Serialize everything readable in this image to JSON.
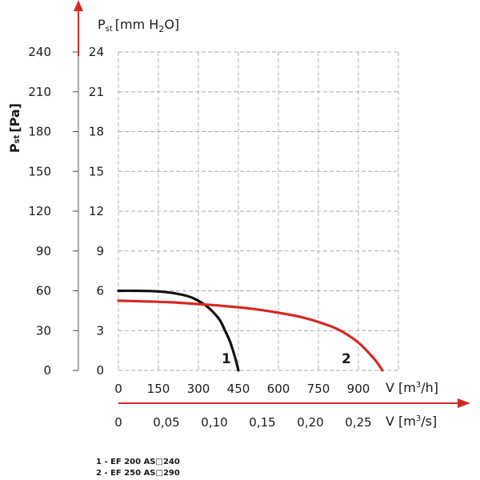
{
  "chart_data": {
    "type": "line",
    "y_axis_title": "P",
    "y_axis_title_sub": "st",
    "y_axis_unit": "[Pa]",
    "y2_axis_title": "P",
    "y2_axis_title_sub": "st",
    "y2_axis_unit_pre": "[mm H",
    "y2_axis_unit_sub": "2",
    "y2_axis_unit_post": "O]",
    "x_axis_label_pre": "V [m",
    "x_axis_label_sup": "3",
    "x_axis_label_post": "/h]",
    "x2_axis_label_pre": "V [m",
    "x2_axis_label_sup": "3",
    "x2_axis_label_post": "/s]",
    "y_ticks_pa": [
      "0",
      "30",
      "60",
      "90",
      "120",
      "150",
      "180",
      "210",
      "240"
    ],
    "y_ticks_mm": [
      "0",
      "3",
      "6",
      "9",
      "12",
      "15",
      "18",
      "21",
      "24"
    ],
    "x_ticks_m3h": [
      "0",
      "150",
      "300",
      "450",
      "600",
      "750",
      "900"
    ],
    "x_ticks_m3s": [
      "0",
      "0,05",
      "0,10",
      "0,15",
      "0,20",
      "0,25"
    ],
    "x_range_m3h": [
      0,
      1050
    ],
    "y_range_pa": [
      0,
      240
    ],
    "grid": true,
    "series": [
      {
        "name": "1",
        "color": "#111111",
        "x": [
          0,
          60,
          120,
          180,
          240,
          280,
          320,
          350,
          380,
          400,
          420,
          440,
          450
        ],
        "y": [
          60,
          60,
          59.8,
          59,
          57,
          54.5,
          50,
          45,
          38,
          30,
          21,
          8,
          0
        ]
      },
      {
        "name": "2",
        "color": "#d42a22",
        "x": [
          0,
          100,
          200,
          300,
          400,
          500,
          600,
          700,
          800,
          850,
          900,
          940,
          970,
          990
        ],
        "y": [
          52.5,
          52,
          51.3,
          50,
          48.5,
          46.5,
          43.5,
          39.5,
          33,
          28,
          21,
          13,
          6,
          0
        ]
      }
    ]
  },
  "legend": {
    "items": [
      "1 -  EF 200 AS□240",
      "2 -  EF 250 AS□290"
    ]
  },
  "colors": {
    "axis_arrow": "#d42a22"
  }
}
